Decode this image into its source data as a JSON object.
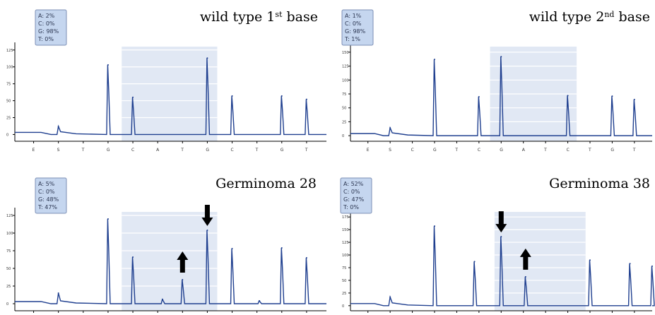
{
  "colors": {
    "trace": "#1f3f8f",
    "shade": "#e1e8f4",
    "box": "#c5d6ef"
  },
  "chart_data": [
    {
      "type": "line",
      "title": "wild type 1st base",
      "title_main": "wild type 1",
      "title_sup": "st",
      "title_rest": " base",
      "base_calls": [
        "A: 2%",
        "C: 0%",
        "G: 98%",
        "T: 0%"
      ],
      "yticks": [
        "125",
        "100",
        "75",
        "50",
        "25",
        "0"
      ],
      "ylim": [
        -10,
        130
      ],
      "x_sequence": [
        "E",
        "S",
        "T",
        "G",
        "C",
        "A",
        "T",
        "G",
        "C",
        "T",
        "G",
        "T"
      ],
      "peaks": [
        {
          "pos": 1,
          "value": 12
        },
        {
          "pos": 3,
          "value": 103
        },
        {
          "pos": 4,
          "value": 55
        },
        {
          "pos": 7,
          "value": 113
        },
        {
          "pos": 8,
          "value": 57
        },
        {
          "pos": 10,
          "value": 57
        },
        {
          "pos": 11,
          "value": 52
        }
      ],
      "highlight": [
        3.55,
        7.4
      ],
      "arrows": []
    },
    {
      "type": "line",
      "title": "wild type 2nd base",
      "title_main": "wild type 2",
      "title_sup": "nd",
      "title_rest": " base",
      "base_calls": [
        "A: 1%",
        "C: 0%",
        "G: 98%",
        "T: 1%"
      ],
      "yticks": [
        "150",
        "125",
        "100",
        "75",
        "50",
        "25",
        "0"
      ],
      "ylim": [
        -10,
        160
      ],
      "x_sequence": [
        "E",
        "S",
        "C",
        "G",
        "T",
        "C",
        "G",
        "A",
        "T",
        "C",
        "T",
        "G",
        "T"
      ],
      "peaks": [
        {
          "pos": 1,
          "value": 14
        },
        {
          "pos": 3,
          "value": 137
        },
        {
          "pos": 5,
          "value": 70
        },
        {
          "pos": 6,
          "value": 142
        },
        {
          "pos": 9,
          "value": 72
        },
        {
          "pos": 11,
          "value": 71
        },
        {
          "pos": 12,
          "value": 65
        }
      ],
      "highlight": [
        5.5,
        9.4
      ],
      "arrows": []
    },
    {
      "type": "line",
      "title": "Germinoma 28",
      "title_main": "Germinoma 28",
      "title_sup": "",
      "title_rest": "",
      "base_calls": [
        "A: 5%",
        "C: 0%",
        "G: 48%",
        "T: 47%"
      ],
      "yticks": [
        "125",
        "100",
        "75",
        "50",
        "25",
        "0"
      ],
      "ylim": [
        -10,
        130
      ],
      "x_sequence": [
        "",
        "",
        "",
        "",
        "",
        "",
        "",
        "",
        "",
        "",
        "",
        ""
      ],
      "peaks": [
        {
          "pos": 1,
          "value": 15
        },
        {
          "pos": 3,
          "value": 120
        },
        {
          "pos": 4,
          "value": 66
        },
        {
          "pos": 5.2,
          "value": 6
        },
        {
          "pos": 6,
          "value": 34
        },
        {
          "pos": 7,
          "value": 104
        },
        {
          "pos": 8,
          "value": 78
        },
        {
          "pos": 9.1,
          "value": 4
        },
        {
          "pos": 10,
          "value": 79
        },
        {
          "pos": 11,
          "value": 65
        }
      ],
      "highlight": [
        3.55,
        7.4
      ],
      "arrows": [
        {
          "pos": 6,
          "direction": "up"
        },
        {
          "pos": 7,
          "direction": "down"
        }
      ]
    },
    {
      "type": "line",
      "title": "Germinoma 38",
      "title_main": "Germinoma 38",
      "title_sup": "",
      "title_rest": "",
      "base_calls": [
        "A: 52%",
        "C: 0%",
        "G: 47%",
        "T: 0%"
      ],
      "yticks": [
        "175",
        "150",
        "125",
        "100",
        "75",
        "50",
        "25",
        "0"
      ],
      "ylim": [
        -10,
        185
      ],
      "x_sequence": [
        "",
        "",
        "",
        "",
        "",
        "",
        "",
        "",
        "",
        "",
        "",
        "",
        ""
      ],
      "peaks": [
        {
          "pos": 1,
          "value": 17
        },
        {
          "pos": 3,
          "value": 157
        },
        {
          "pos": 4.8,
          "value": 87
        },
        {
          "pos": 6,
          "value": 136
        },
        {
          "pos": 7.1,
          "value": 57
        },
        {
          "pos": 10,
          "value": 90
        },
        {
          "pos": 11.8,
          "value": 83
        },
        {
          "pos": 12.8,
          "value": 78
        }
      ],
      "highlight": [
        5.7,
        9.8
      ],
      "arrows": [
        {
          "pos": 6,
          "direction": "down"
        },
        {
          "pos": 7.1,
          "direction": "up"
        }
      ]
    }
  ]
}
